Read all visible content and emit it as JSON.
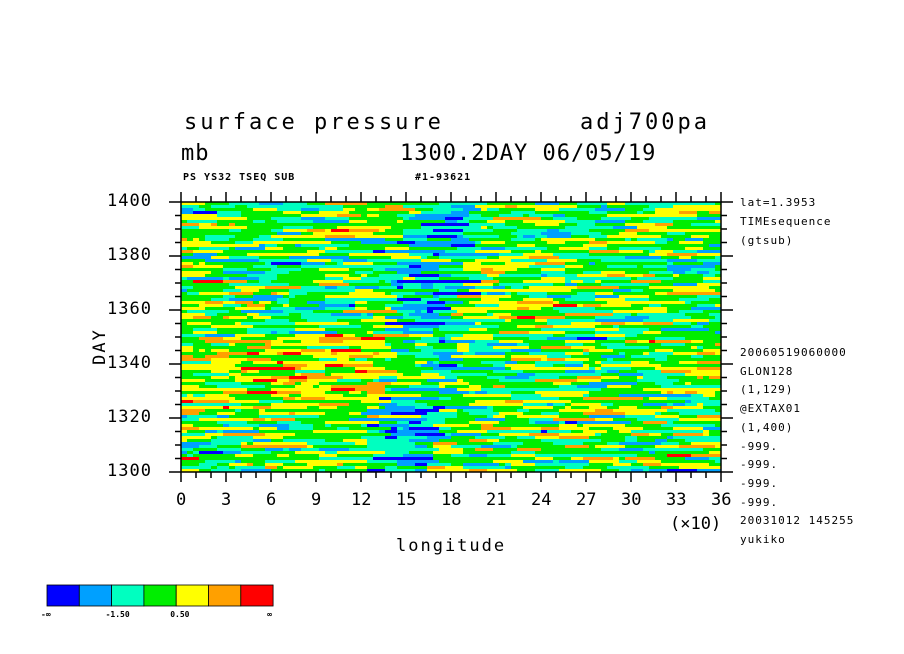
{
  "header": {
    "title": "surface pressure",
    "run": "adj700pa",
    "unit": "mb",
    "time": "1300.2DAY 06/05/19",
    "id_left": "PS YS32 TSEQ SUB",
    "id_right": "#1-93621"
  },
  "info": {
    "lines": [
      "lat=1.3953",
      "TIMEsequence",
      "(gtsub)"
    ],
    "lines2": [
      "20060519060000",
      "GLON128",
      "(1,129)",
      "@EXTAX01",
      "(1,400)",
      "-999.",
      "-999.",
      "-999.",
      "-999.",
      "20031012 145255",
      "yukiko"
    ]
  },
  "colorbar": {
    "colors": [
      "#0000ff",
      "#00a0ff",
      "#00ffc0",
      "#00ee00",
      "#ffff00",
      "#ffa000",
      "#ff0000"
    ],
    "labels": [
      "-∞",
      "-1.50",
      "0.50",
      "∞"
    ]
  },
  "chart_data": {
    "type": "heatmap",
    "title": "surface pressure",
    "xlabel": "longitude",
    "ylabel": "DAY",
    "x_multiplier": "(×10)",
    "xlim": [
      0,
      36
    ],
    "ylim": [
      1300,
      1400
    ],
    "xticks": [
      "0",
      "3",
      "6",
      "9",
      "12",
      "15",
      "18",
      "21",
      "24",
      "27",
      "30",
      "33",
      "36"
    ],
    "yticks": [
      "1300",
      "1320",
      "1340",
      "1360",
      "1380",
      "1400"
    ],
    "levels": [
      "-∞",
      "-1.50",
      "0.50",
      "∞"
    ]
  }
}
